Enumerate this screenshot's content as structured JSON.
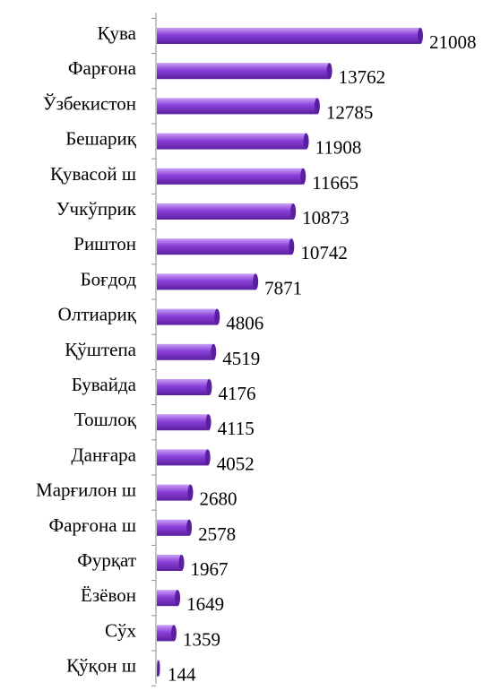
{
  "chart_data": {
    "type": "bar",
    "orientation": "horizontal",
    "categories": [
      "Қува",
      "Фарғона",
      "Ўзбекистон",
      "Бешариқ",
      "Қувасой ш",
      "Учкўприк",
      "Риштон",
      "Боғдод",
      "Олтиариқ",
      "Қўштепа",
      "Бувайда",
      "Тошлоқ",
      "Данғара",
      "Марғилон ш",
      "Фарғона ш",
      "Фурқат",
      "Ёзёвон",
      "Сўх",
      "Қўқон ш"
    ],
    "values": [
      21008,
      13762,
      12785,
      11908,
      11665,
      10873,
      10742,
      7871,
      4806,
      4519,
      4176,
      4115,
      4052,
      2680,
      2578,
      1967,
      1649,
      1359,
      144
    ],
    "value_labels": [
      "21008",
      "13762",
      "12785",
      "11908",
      "11665",
      "10873",
      "10742",
      "7871",
      "4806",
      "4519",
      "4176",
      "4115",
      "4052",
      "2680",
      "2578",
      "1967",
      "1649",
      "1359",
      "144"
    ],
    "title": "",
    "xlabel": "",
    "ylabel": "",
    "xlim": [
      0,
      21008
    ],
    "grid": false,
    "legend": "none",
    "bar_color": "#8a3fd8",
    "bar_color_dark": "#5a1fa0",
    "bar_color_light": "#c8a0f5",
    "axis_color": "#8c8c8c"
  }
}
